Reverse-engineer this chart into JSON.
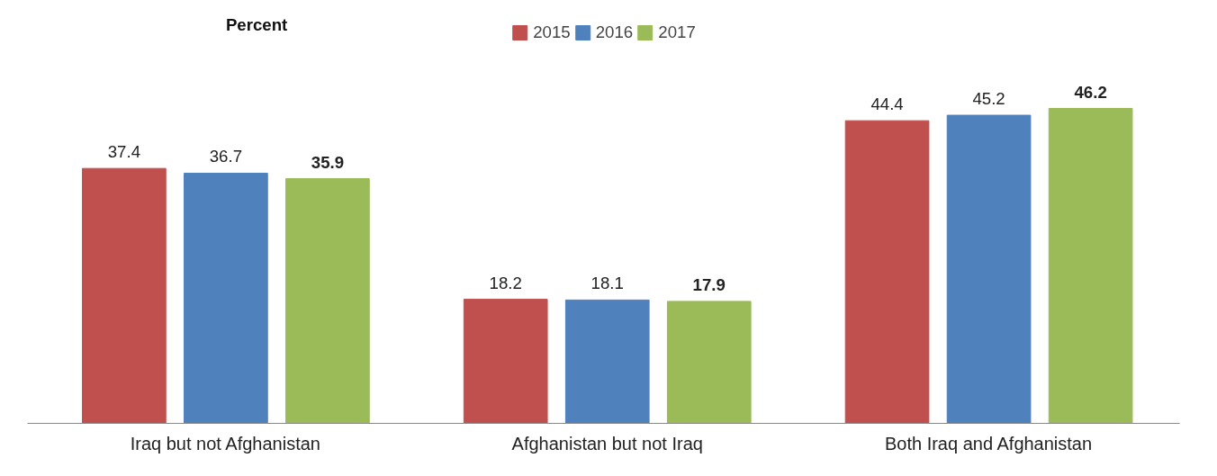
{
  "chart_data": {
    "type": "bar",
    "annotations": [
      "Percent"
    ],
    "categories": [
      "Iraq but not Afghanistan",
      "Afghanistan but not Iraq",
      "Both Iraq and Afghanistan"
    ],
    "series": [
      {
        "name": "2015",
        "color": "#c0504d",
        "values": [
          37.4,
          18.2,
          44.4
        ]
      },
      {
        "name": "2016",
        "color": "#4f81bd",
        "values": [
          36.7,
          18.1,
          45.2
        ]
      },
      {
        "name": "2017",
        "color": "#9bbb59",
        "values": [
          35.9,
          17.9,
          46.2
        ]
      }
    ],
    "data_labels": true,
    "legend": "top"
  }
}
